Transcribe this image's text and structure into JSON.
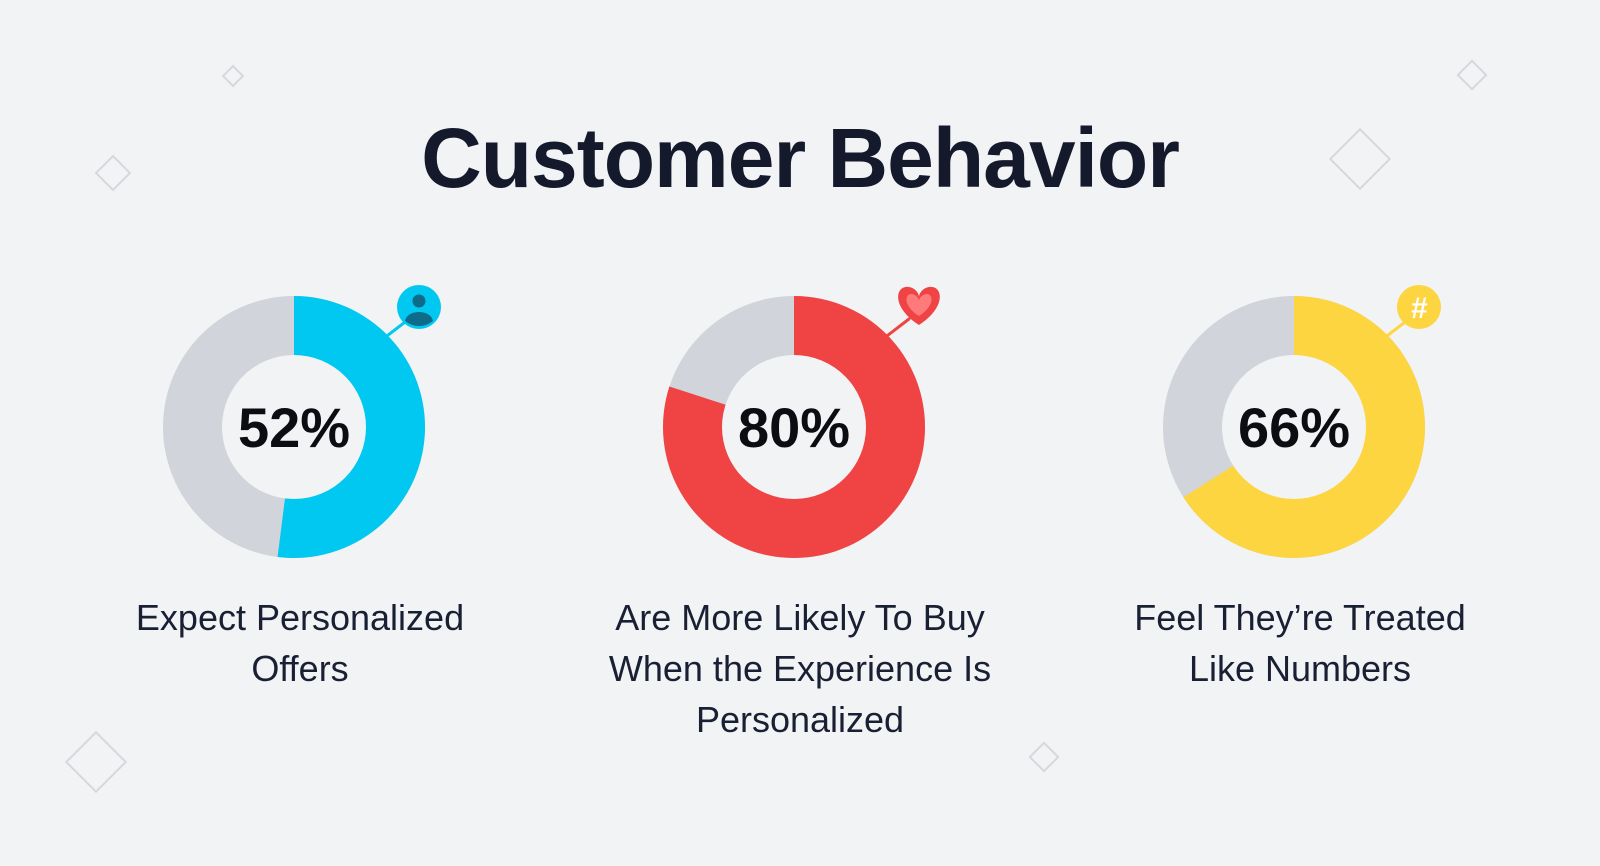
{
  "title": "Customer Behavior",
  "colors": {
    "background": "#f2f3f5",
    "track": "#d1d4da",
    "hole": "#f2f3f5"
  },
  "chart_data": [
    {
      "type": "pie",
      "value": 52,
      "label": "52%",
      "caption": "Expect Personalized Offers",
      "color": "#00c8f0",
      "icon": "user-icon"
    },
    {
      "type": "pie",
      "value": 80,
      "label": "80%",
      "caption": "Are More Likely To Buy When the Experience Is Personalized",
      "color": "#f04343",
      "icon": "heart-icon"
    },
    {
      "type": "pie",
      "value": 66,
      "label": "66%",
      "caption": "Feel They’re Treated Like Numbers",
      "color": "#fdd540",
      "icon": "hash-icon"
    }
  ]
}
